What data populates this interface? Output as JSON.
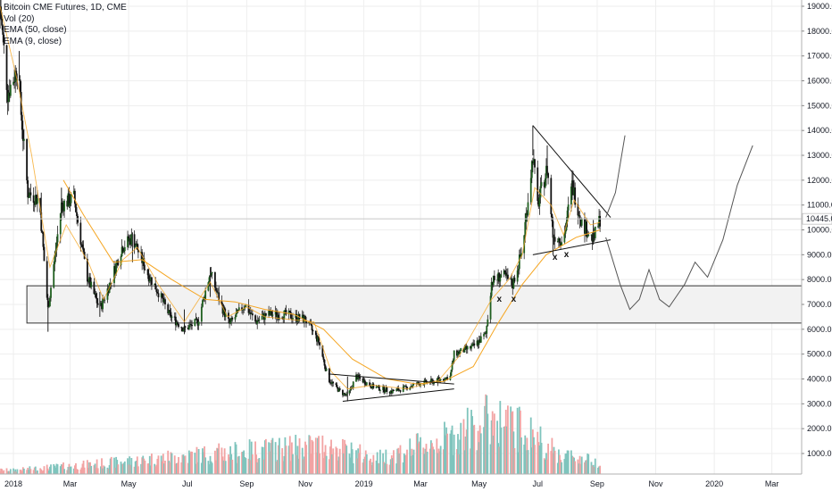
{
  "legend": {
    "title": "Bitcoin CME Futures, 1D, CME",
    "vol": "Vol (20)",
    "ema50": "EMA (50, close)",
    "ema9": "EMA (9, close)"
  },
  "chart_data": {
    "type": "candlestick",
    "title": "Bitcoin CME Futures, 1D, CME",
    "ylim": [
      0,
      19500
    ],
    "y_ticks": [
      1000,
      2000,
      3000,
      4000,
      5000,
      6000,
      7000,
      8000,
      9000,
      10000,
      11000,
      12000,
      13000,
      14000,
      15000,
      16000,
      17000,
      18000,
      19000
    ],
    "y_tick_labels": [
      "1000.0",
      "2000.0",
      "3000.0",
      "4000.0",
      "5000.0",
      "6000.0",
      "7000.0",
      "8000.0",
      "9000.0",
      "10000.0",
      "11000.0",
      "12000.0",
      "13000.0",
      "14000.0",
      "15000.0",
      "16000.0",
      "17000.0",
      "18000.0",
      "19000.0"
    ],
    "last_price": 10445,
    "last_price_label": "10445.0",
    "x_range": [
      "2017-12-18",
      "2020-04-01"
    ],
    "x_ticks": [
      {
        "date": "2018-01-01",
        "label": "2018"
      },
      {
        "date": "2018-03-01",
        "label": "Mar"
      },
      {
        "date": "2018-05-01",
        "label": "May"
      },
      {
        "date": "2018-07-01",
        "label": "Jul"
      },
      {
        "date": "2018-09-01",
        "label": "Sep"
      },
      {
        "date": "2018-11-01",
        "label": "Nov"
      },
      {
        "date": "2019-01-01",
        "label": "2019"
      },
      {
        "date": "2019-03-01",
        "label": "Mar"
      },
      {
        "date": "2019-05-01",
        "label": "May"
      },
      {
        "date": "2019-07-01",
        "label": "Jul"
      },
      {
        "date": "2019-09-01",
        "label": "Sep"
      },
      {
        "date": "2019-11-01",
        "label": "Nov"
      },
      {
        "date": "2020-01-01",
        "label": "2020"
      },
      {
        "date": "2020-03-01",
        "label": "Mar"
      }
    ],
    "price_path": [
      [
        "2017-12-18",
        19000
      ],
      [
        "2017-12-26",
        15500
      ],
      [
        "2018-01-05",
        16500
      ],
      [
        "2018-01-16",
        11500
      ],
      [
        "2018-01-28",
        11200
      ],
      [
        "2018-02-06",
        6800
      ],
      [
        "2018-02-20",
        11000
      ],
      [
        "2018-03-05",
        11300
      ],
      [
        "2018-03-18",
        8200
      ],
      [
        "2018-04-01",
        6800
      ],
      [
        "2018-04-12",
        7900
      ],
      [
        "2018-04-24",
        9300
      ],
      [
        "2018-05-05",
        9700
      ],
      [
        "2018-05-20",
        8300
      ],
      [
        "2018-06-01",
        7500
      ],
      [
        "2018-06-12",
        6600
      ],
      [
        "2018-06-28",
        6000
      ],
      [
        "2018-07-12",
        6300
      ],
      [
        "2018-07-25",
        8300
      ],
      [
        "2018-08-05",
        7000
      ],
      [
        "2018-08-14",
        6200
      ],
      [
        "2018-08-30",
        7000
      ],
      [
        "2018-09-10",
        6300
      ],
      [
        "2018-09-22",
        6600
      ],
      [
        "2018-10-10",
        6600
      ],
      [
        "2018-11-01",
        6400
      ],
      [
        "2018-11-15",
        5500
      ],
      [
        "2018-11-25",
        4000
      ],
      [
        "2018-12-07",
        3500
      ],
      [
        "2018-12-15",
        3300
      ],
      [
        "2018-12-24",
        4100
      ],
      [
        "2019-01-10",
        3700
      ],
      [
        "2019-01-30",
        3500
      ],
      [
        "2019-02-10",
        3600
      ],
      [
        "2019-02-25",
        3800
      ],
      [
        "2019-03-15",
        3900
      ],
      [
        "2019-04-01",
        4100
      ],
      [
        "2019-04-05",
        5000
      ],
      [
        "2019-04-25",
        5300
      ],
      [
        "2019-05-08",
        5800
      ],
      [
        "2019-05-14",
        7900
      ],
      [
        "2019-05-25",
        8200
      ],
      [
        "2019-06-05",
        7800
      ],
      [
        "2019-06-15",
        9200
      ],
      [
        "2019-06-26",
        13000
      ],
      [
        "2019-07-01",
        11000
      ],
      [
        "2019-07-11",
        12500
      ],
      [
        "2019-07-17",
        9800
      ],
      [
        "2019-07-28",
        9600
      ],
      [
        "2019-08-06",
        11800
      ],
      [
        "2019-08-16",
        10300
      ],
      [
        "2019-08-28",
        9600
      ],
      [
        "2019-09-04",
        10445
      ]
    ],
    "highs": [
      [
        "2017-12-18",
        19300
      ],
      [
        "2018-01-07",
        17200
      ],
      [
        "2018-01-30",
        11500
      ],
      [
        "2018-02-20",
        11700
      ],
      [
        "2018-05-05",
        9900
      ],
      [
        "2018-07-25",
        8500
      ],
      [
        "2019-06-26",
        14200
      ],
      [
        "2019-07-11",
        13400
      ],
      [
        "2019-08-06",
        12400
      ]
    ],
    "lows": [
      [
        "2018-02-06",
        5900
      ],
      [
        "2018-04-01",
        6500
      ],
      [
        "2018-06-28",
        5800
      ],
      [
        "2018-12-15",
        3100
      ],
      [
        "2019-07-17",
        9000
      ],
      [
        "2019-08-28",
        9400
      ]
    ],
    "ema9": [
      [
        "2017-12-18",
        19000
      ],
      [
        "2018-01-05",
        16000
      ],
      [
        "2018-01-20",
        13000
      ],
      [
        "2018-02-08",
        8500
      ],
      [
        "2018-02-25",
        10200
      ],
      [
        "2018-03-20",
        8700
      ],
      [
        "2018-04-05",
        7200
      ],
      [
        "2018-04-25",
        8800
      ],
      [
        "2018-05-10",
        9300
      ],
      [
        "2018-06-01",
        7800
      ],
      [
        "2018-06-28",
        6300
      ],
      [
        "2018-07-25",
        7900
      ],
      [
        "2018-08-12",
        6500
      ],
      [
        "2018-09-01",
        6900
      ],
      [
        "2018-09-20",
        6500
      ],
      [
        "2018-11-10",
        6300
      ],
      [
        "2018-11-28",
        4300
      ],
      [
        "2018-12-15",
        3600
      ],
      [
        "2019-01-10",
        3750
      ],
      [
        "2019-02-15",
        3600
      ],
      [
        "2019-03-20",
        3950
      ],
      [
        "2019-04-10",
        4900
      ],
      [
        "2019-05-14",
        7200
      ],
      [
        "2019-06-01",
        8000
      ],
      [
        "2019-06-15",
        9000
      ],
      [
        "2019-06-28",
        11700
      ],
      [
        "2019-07-15",
        11000
      ],
      [
        "2019-07-28",
        9800
      ],
      [
        "2019-08-08",
        11200
      ],
      [
        "2019-08-25",
        10200
      ],
      [
        "2019-09-04",
        10300
      ]
    ],
    "ema50": [
      [
        "2018-02-22",
        12000
      ],
      [
        "2018-03-15",
        10600
      ],
      [
        "2018-04-15",
        8700
      ],
      [
        "2018-05-15",
        8800
      ],
      [
        "2018-06-15",
        8000
      ],
      [
        "2018-07-20",
        7200
      ],
      [
        "2018-08-20",
        7100
      ],
      [
        "2018-09-20",
        6800
      ],
      [
        "2018-10-20",
        6600
      ],
      [
        "2018-11-20",
        6000
      ],
      [
        "2018-12-20",
        4800
      ],
      [
        "2019-01-25",
        4000
      ],
      [
        "2019-02-25",
        3800
      ],
      [
        "2019-03-25",
        3900
      ],
      [
        "2019-04-25",
        4500
      ],
      [
        "2019-05-20",
        6200
      ],
      [
        "2019-06-15",
        7800
      ],
      [
        "2019-07-10",
        9000
      ],
      [
        "2019-08-10",
        9700
      ],
      [
        "2019-09-04",
        10000
      ]
    ],
    "support_zone": {
      "top": 7750,
      "bottom": 6250,
      "from": "2018-01-15",
      "to": "2020-04-01"
    },
    "trendlines": [
      {
        "from": [
          "2018-11-25",
          4200
        ],
        "to": [
          "2019-04-05",
          3800
        ]
      },
      {
        "from": [
          "2018-12-10",
          3100
        ],
        "to": [
          "2019-04-05",
          3600
        ]
      },
      {
        "from": [
          "2019-06-26",
          14200
        ],
        "to": [
          "2019-09-15",
          10500
        ]
      },
      {
        "from": [
          "2019-06-26",
          9000
        ],
        "to": [
          "2019-09-15",
          9600
        ]
      }
    ],
    "projection_up": [
      [
        "2019-09-10",
        10500
      ],
      [
        "2019-09-20",
        11500
      ],
      [
        "2019-09-30",
        13800
      ]
    ],
    "projection_down": [
      [
        "2019-09-10",
        9700
      ],
      [
        "2019-09-25",
        7800
      ],
      [
        "2019-10-05",
        6800
      ],
      [
        "2019-10-15",
        7200
      ],
      [
        "2019-10-25",
        8400
      ],
      [
        "2019-11-05",
        7200
      ],
      [
        "2019-11-15",
        6900
      ],
      [
        "2019-12-01",
        7800
      ],
      [
        "2019-12-12",
        8700
      ],
      [
        "2019-12-25",
        8100
      ],
      [
        "2020-01-10",
        9600
      ],
      [
        "2020-01-25",
        11800
      ],
      [
        "2020-02-10",
        13400
      ]
    ],
    "markers": [
      {
        "date": "2019-05-22",
        "value": 7100,
        "label": "x"
      },
      {
        "date": "2019-06-06",
        "value": 7100,
        "label": "x"
      },
      {
        "date": "2019-07-19",
        "value": 8800,
        "label": "x"
      },
      {
        "date": "2019-07-31",
        "value": 8900,
        "label": "x"
      }
    ],
    "volume_peaks": [
      [
        "2018-01-01",
        300
      ],
      [
        "2018-04-20",
        900
      ],
      [
        "2018-07-20",
        1500
      ],
      [
        "2018-11-20",
        2200
      ],
      [
        "2019-01-15",
        1200
      ],
      [
        "2019-04-02",
        2800
      ],
      [
        "2019-05-14",
        4300
      ],
      [
        "2019-06-26",
        3000
      ],
      [
        "2019-07-20",
        1600
      ],
      [
        "2019-09-04",
        900
      ]
    ]
  },
  "colors": {
    "up": "#1f5f1f",
    "down": "#111111",
    "ema9": "#f5a623",
    "ema50": "#f5a623",
    "vol_up": "#7fc4bd",
    "vol_down": "#f2a3a3",
    "zone_fill": "#f2f2f2",
    "zone_stroke": "#333333",
    "grid": "#eeeeee",
    "axis_text": "#131722"
  }
}
